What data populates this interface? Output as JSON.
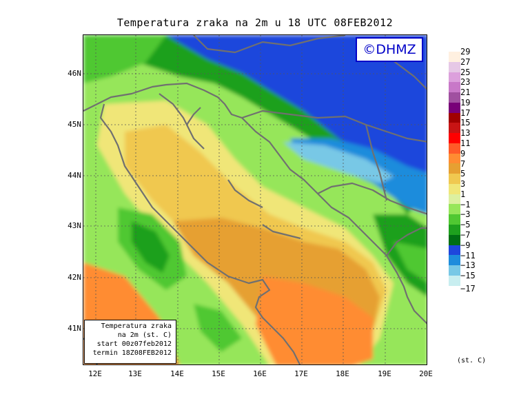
{
  "title": "Temperatura zraka na 2m u 18 UTC 08FEB2012",
  "logo": "©DHMZ",
  "info_box": {
    "line1": "Temperatura zraka",
    "line2": "na 2m (st. C)",
    "line3": "start 00z07feb2012",
    "line4": "termin 18Z08FEB2012"
  },
  "lat_labels": [
    "46N",
    "45N",
    "44N",
    "43N",
    "42N",
    "41N"
  ],
  "lon_labels": [
    "12E",
    "13E",
    "14E",
    "15E",
    "16E",
    "17E",
    "18E",
    "19E",
    "20E"
  ],
  "legend": {
    "labels": [
      "29",
      "27",
      "25",
      "23",
      "21",
      "19",
      "17",
      "15",
      "13",
      "11",
      "9",
      "7",
      "5",
      "3",
      "1",
      "−1",
      "−3",
      "−5",
      "−7",
      "−9",
      "−11",
      "−13",
      "−15",
      "−17"
    ],
    "colors": [
      "#fff0e0",
      "#e6c8e6",
      "#dca0dc",
      "#c878c8",
      "#a050a0",
      "#780078",
      "#a00000",
      "#c81414",
      "#ff0000",
      "#ff5a28",
      "#ff8c32",
      "#e6a032",
      "#f0c850",
      "#f0e678",
      "#dcf0a0",
      "#96e65a",
      "#50c832",
      "#1ea01e",
      "#006e14",
      "#1e46dc",
      "#1e8cdc",
      "#78c8e6",
      "#c8eef0",
      "#ffffff"
    ],
    "unit": "(st. C)"
  },
  "colors": {
    "land_outline": "#707070",
    "grid": "#555555",
    "logo": "#0000c8"
  }
}
